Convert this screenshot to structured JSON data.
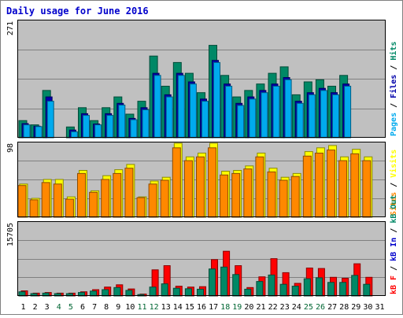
{
  "chart_data": {
    "type": "bar",
    "title": "Daily usage for June 2016",
    "categories": [
      "1",
      "2",
      "3",
      "4",
      "5",
      "6",
      "7",
      "8",
      "9",
      "10",
      "11",
      "12",
      "13",
      "14",
      "15",
      "16",
      "17",
      "18",
      "19",
      "20",
      "21",
      "22",
      "23",
      "24",
      "25",
      "26",
      "27",
      "28",
      "29",
      "30",
      "31"
    ],
    "weekend_days": [
      "4",
      "5",
      "11",
      "12",
      "18",
      "19",
      "25",
      "26"
    ],
    "grid": true,
    "legend": "right-vertical",
    "colors": {
      "background": "#ffffff",
      "plot_bg": "#c0c0c0",
      "grid": "#808080",
      "title": "#0000cc",
      "day_label": "#000000",
      "weekend_label": "#006633",
      "hits": "#008866",
      "files": "#0000aa",
      "pages": "#00aaee",
      "visits": "#ffff00",
      "sites": "#ff8800",
      "kb_in": "#0000cc",
      "kb_out": "#008866",
      "kb_f": "#ff0000",
      "label_slash": "#000000"
    },
    "panels": [
      {
        "id": "hits_files_pages",
        "ymax_label": "271",
        "ymax": 271,
        "legend": [
          {
            "name": "Pages",
            "color_key": "pages"
          },
          {
            "name": "Files",
            "color_key": "files"
          },
          {
            "name": "Hits",
            "color_key": "hits"
          }
        ],
        "series": [
          {
            "name": "Hits",
            "color_key": "hits",
            "values": [
              40,
              30,
              110,
              0,
              25,
              70,
              40,
              70,
              95,
              55,
              85,
              190,
              120,
              175,
              150,
              105,
              215,
              145,
              95,
              110,
              125,
              150,
              165,
              100,
              130,
              135,
              120,
              145,
              0,
              0,
              0
            ]
          },
          {
            "name": "Files",
            "color_key": "files",
            "values": [
              33,
              27,
              95,
              0,
              18,
              56,
              32,
              56,
              80,
              45,
              70,
              150,
              100,
              150,
              130,
              90,
              180,
              125,
              80,
              95,
              110,
              125,
              140,
              85,
              105,
              115,
              105,
              125,
              0,
              0,
              0
            ]
          },
          {
            "name": "Pages",
            "color_key": "pages",
            "values": [
              30,
              26,
              85,
              0,
              14,
              52,
              30,
              52,
              76,
              42,
              65,
              145,
              95,
              145,
              125,
              85,
              175,
              120,
              75,
              90,
              105,
              120,
              135,
              80,
              100,
              110,
              100,
              120,
              0,
              0,
              0
            ]
          }
        ]
      },
      {
        "id": "visits_sites",
        "ymax_label": "98",
        "ymax": 98,
        "legend": [
          {
            "name": "Sites",
            "color_key": "sites"
          },
          {
            "name": "Visits",
            "color_key": "visits"
          }
        ],
        "series": [
          {
            "name": "Visits",
            "color_key": "visits",
            "values": [
              44,
              25,
              50,
              50,
              27,
              62,
              35,
              55,
              63,
              70,
              27,
              48,
              53,
              98,
              80,
              85,
              98,
              61,
              62,
              68,
              85,
              65,
              53,
              58,
              87,
              92,
              95,
              80,
              90,
              80,
              0
            ]
          },
          {
            "name": "Sites",
            "color_key": "sites",
            "values": [
              42,
              23,
              46,
              44,
              24,
              58,
              33,
              50,
              58,
              65,
              26,
              44,
              49,
              92,
              75,
              80,
              92,
              56,
              58,
              64,
              80,
              60,
              49,
              54,
              81,
              85,
              89,
              75,
              84,
              75,
              0
            ]
          }
        ]
      },
      {
        "id": "kbf_kbin_kbout",
        "ymax_label": "15705",
        "ymax": 15705,
        "legend": [
          {
            "name": "kB F",
            "color_key": "kb_f"
          },
          {
            "name": "kB In",
            "color_key": "kb_in"
          },
          {
            "name": "kB Out",
            "color_key": "kb_out"
          }
        ],
        "series": [
          {
            "name": "kB F",
            "color_key": "kb_f",
            "values": [
              1100,
              600,
              750,
              600,
              600,
              900,
              1350,
              1900,
              2400,
              1500,
              400,
              5600,
              6500,
              2100,
              1900,
              2000,
              7800,
              9600,
              6500,
              1800,
              4100,
              8000,
              5000,
              2700,
              6000,
              5900,
              4000,
              3800,
              6900,
              4000,
              0
            ]
          },
          {
            "name": "kB In",
            "color_key": "kb_in",
            "values": [
              0,
              0,
              0,
              0,
              0,
              0,
              0,
              0,
              0,
              0,
              0,
              0,
              0,
              0,
              0,
              0,
              0,
              0,
              0,
              0,
              0,
              0,
              0,
              0,
              0,
              0,
              0,
              0,
              0,
              0,
              0
            ]
          },
          {
            "name": "kB Out",
            "color_key": "kb_out",
            "values": [
              900,
              500,
              600,
              500,
              500,
              750,
              1050,
              1350,
              1800,
              1200,
              300,
              1900,
              2600,
              1650,
              1550,
              1450,
              5800,
              6200,
              4600,
              1450,
              3100,
              4500,
              2500,
              2100,
              3700,
              3900,
              2900,
              2900,
              4400,
              2500,
              0
            ]
          }
        ]
      }
    ]
  }
}
